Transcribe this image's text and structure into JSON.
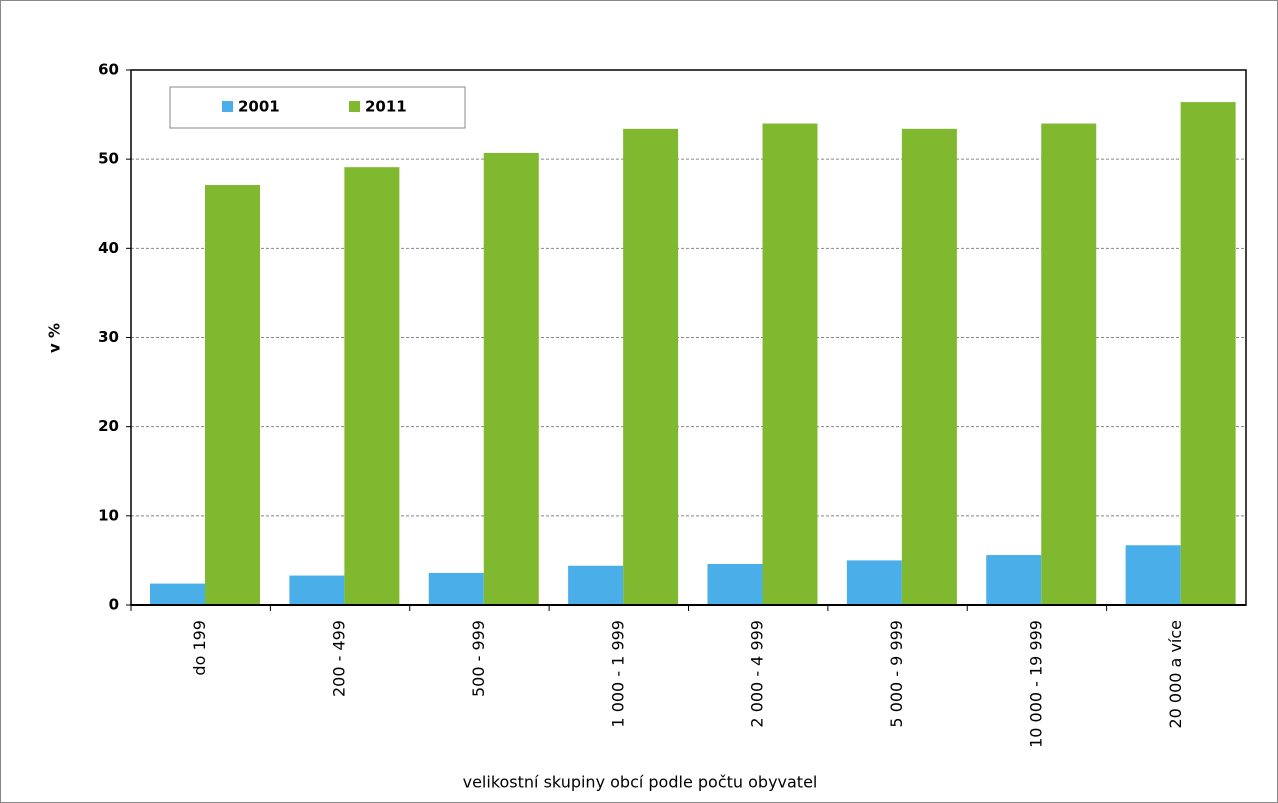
{
  "chart_data": {
    "type": "bar",
    "categories": [
      "do  199",
      "200 - 499",
      "500 - 999",
      "1 000 - 1 999",
      "2 000 - 4 999",
      "5 000 - 9 999",
      "10 000 - 19 999",
      "20 000 a více"
    ],
    "series": [
      {
        "name": "2001",
        "color": "#4aaee8",
        "values": [
          2.4,
          3.3,
          3.6,
          4.4,
          4.6,
          5.0,
          5.6,
          6.7
        ]
      },
      {
        "name": "2011",
        "color": "#80b930",
        "values": [
          47.1,
          49.1,
          50.7,
          53.4,
          54.0,
          53.4,
          54.0,
          56.4
        ]
      }
    ],
    "ylabel": "v %",
    "xlabel": "velikostní skupiny obcí podle počtu obyvatel",
    "ylim": [
      0,
      60
    ],
    "yticks": [
      0,
      10,
      20,
      30,
      40,
      50,
      60
    ],
    "grid": true,
    "legend": "top-left"
  }
}
